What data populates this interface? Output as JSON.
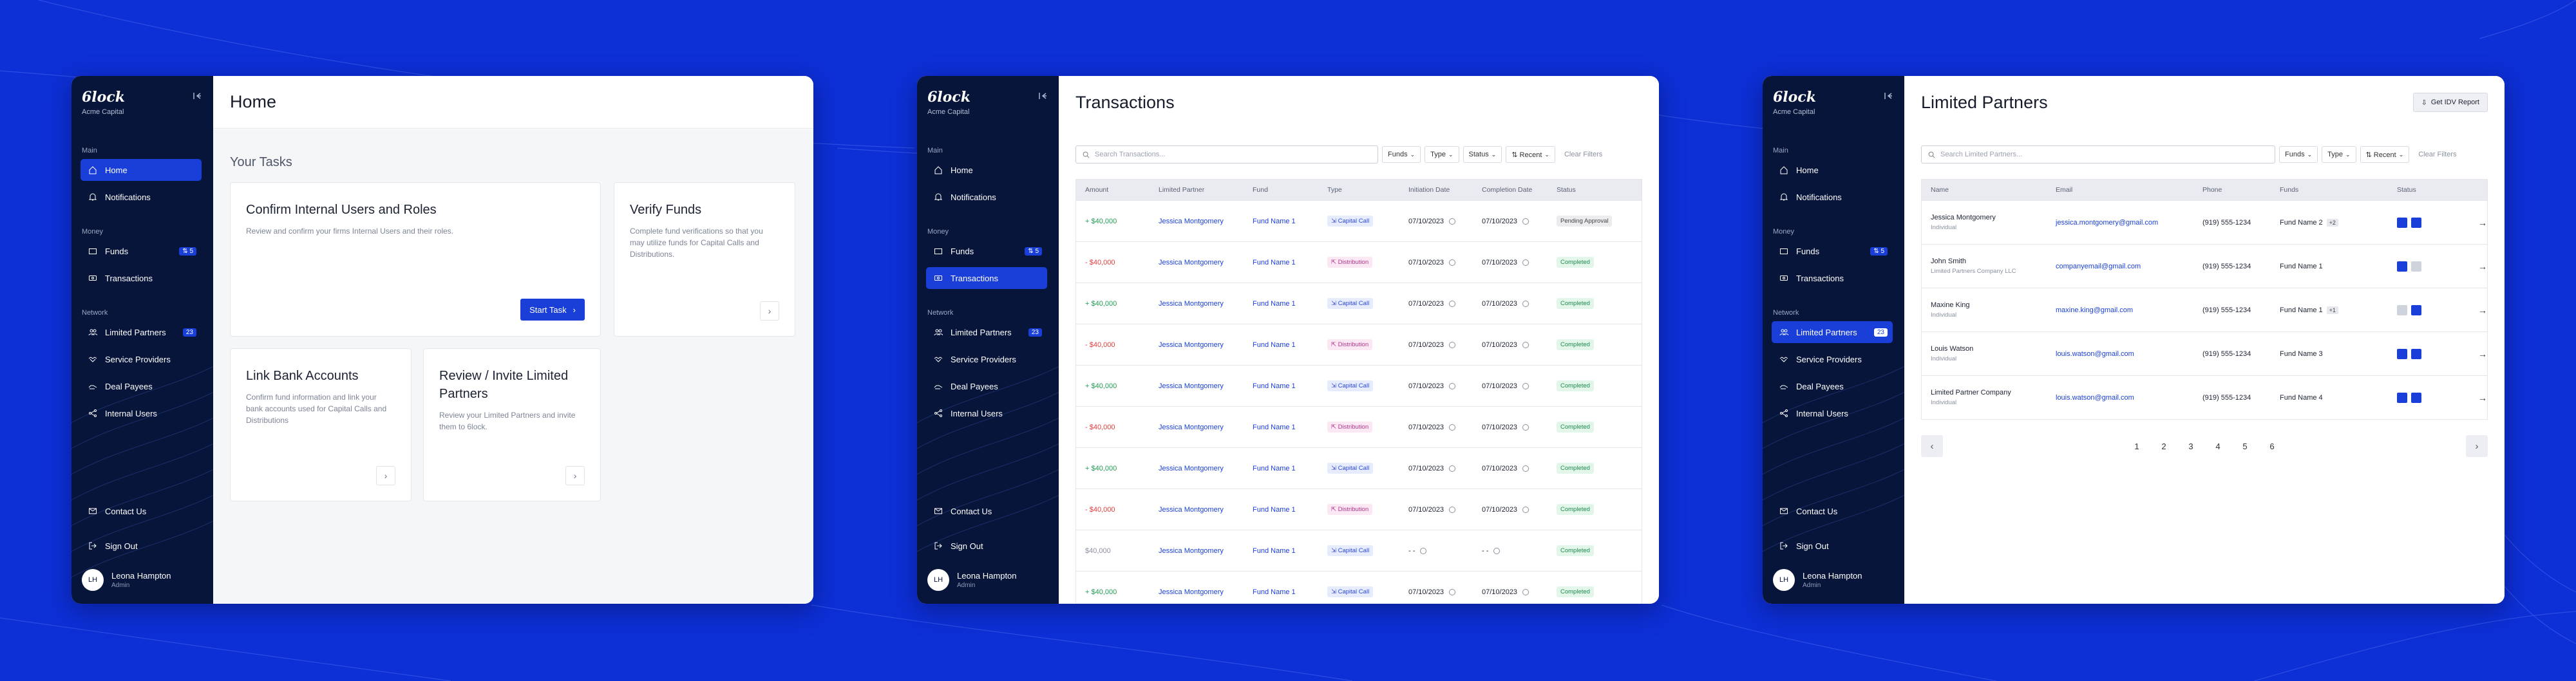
{
  "common": {
    "logo": "6lock",
    "org": "Acme Capital",
    "sections": {
      "main": "Main",
      "money": "Money",
      "network": "Network"
    },
    "nav": {
      "home": "Home",
      "notifications": "Notifications",
      "funds": "Funds",
      "funds_badge": "⇅ 5",
      "transactions": "Transactions",
      "limited_partners": "Limited Partners",
      "lp_badge": "23",
      "service_providers": "Service Providers",
      "deal_payees": "Deal Payees",
      "internal_users": "Internal Users",
      "contact_us": "Contact Us",
      "sign_out": "Sign Out"
    },
    "user": {
      "initials": "LH",
      "name": "Leona Hampton",
      "role": "Admin"
    }
  },
  "home": {
    "title": "Home",
    "section_title": "Your Tasks",
    "cards": [
      {
        "title": "Confirm Internal Users and Roles",
        "desc": "Review and confirm your firms Internal Users and their roles.",
        "button": "Start Task"
      },
      {
        "title": "Verify Funds",
        "desc": "Complete fund verifications so that you may utilize funds for Capital Calls and Distributions."
      },
      {
        "title": "Link Bank Accounts",
        "desc": "Confirm fund information and link your bank accounts used for Capital Calls and Distributions"
      },
      {
        "title": "Review / Invite Limited Partners",
        "desc": "Review your Limited Partners and invite them to 6lock."
      }
    ]
  },
  "transactions": {
    "title": "Transactions",
    "search_placeholder": "Search Transactions...",
    "filters": [
      "Funds",
      "Type",
      "Status",
      "⇅ Recent"
    ],
    "clear": "Clear Filters",
    "columns": [
      "Amount",
      "Limited Partner",
      "Fund",
      "Type",
      "Initiation Date",
      "Completion Date",
      "Status"
    ],
    "rows": [
      {
        "amount": "+ $40,000",
        "sign": "pos",
        "lp": "Jessica Montgomery",
        "fund": "Fund Name 1",
        "type": "⇲ Capital Call",
        "tclass": "cc",
        "init": "07/10/2023",
        "comp": "07/10/2023",
        "status": "Pending Approval",
        "sclass": "pa"
      },
      {
        "amount": "- $40,000",
        "sign": "neg",
        "lp": "Jessica Montgomery",
        "fund": "Fund Name 1",
        "type": "⇱ Distribution",
        "tclass": "ds",
        "init": "07/10/2023",
        "comp": "07/10/2023",
        "status": "Completed",
        "sclass": "ok"
      },
      {
        "amount": "+ $40,000",
        "sign": "pos",
        "lp": "Jessica Montgomery",
        "fund": "Fund Name 1",
        "type": "⇲ Capital Call",
        "tclass": "cc",
        "init": "07/10/2023",
        "comp": "07/10/2023",
        "status": "Completed",
        "sclass": "ok"
      },
      {
        "amount": "- $40,000",
        "sign": "neg",
        "lp": "Jessica Montgomery",
        "fund": "Fund Name 1",
        "type": "⇱ Distribution",
        "tclass": "ds",
        "init": "07/10/2023",
        "comp": "07/10/2023",
        "status": "Completed",
        "sclass": "ok"
      },
      {
        "amount": "+ $40,000",
        "sign": "pos",
        "lp": "Jessica Montgomery",
        "fund": "Fund Name 1",
        "type": "⇲ Capital Call",
        "tclass": "cc",
        "init": "07/10/2023",
        "comp": "07/10/2023",
        "status": "Completed",
        "sclass": "ok"
      },
      {
        "amount": "- $40,000",
        "sign": "neg",
        "lp": "Jessica Montgomery",
        "fund": "Fund Name 1",
        "type": "⇱ Distribution",
        "tclass": "ds",
        "init": "07/10/2023",
        "comp": "07/10/2023",
        "status": "Completed",
        "sclass": "ok"
      },
      {
        "amount": "+ $40,000",
        "sign": "pos",
        "lp": "Jessica Montgomery",
        "fund": "Fund Name 1",
        "type": "⇲ Capital Call",
        "tclass": "cc",
        "init": "07/10/2023",
        "comp": "07/10/2023",
        "status": "Completed",
        "sclass": "ok"
      },
      {
        "amount": "- $40,000",
        "sign": "neg",
        "lp": "Jessica Montgomery",
        "fund": "Fund Name 1",
        "type": "⇱ Distribution",
        "tclass": "ds",
        "init": "07/10/2023",
        "comp": "07/10/2023",
        "status": "Completed",
        "sclass": "ok"
      },
      {
        "amount": "$40,000",
        "sign": "neu",
        "lp": "Jessica Montgomery",
        "fund": "Fund Name 1",
        "type": "⇲ Capital Call",
        "tclass": "cc",
        "init": "- -",
        "comp": "- -",
        "status": "Completed",
        "sclass": "ok"
      },
      {
        "amount": "+ $40,000",
        "sign": "pos",
        "lp": "Jessica Montgomery",
        "fund": "Fund Name 1",
        "type": "⇲ Capital Call",
        "tclass": "cc",
        "init": "07/10/2023",
        "comp": "07/10/2023",
        "status": "Completed",
        "sclass": "ok"
      }
    ]
  },
  "limited_partners": {
    "title": "Limited Partners",
    "report_button": "Get IDV Report",
    "search_placeholder": "Search Limited Partners...",
    "filters": [
      "Funds",
      "Type",
      "⇅ Recent"
    ],
    "clear": "Clear Filters",
    "columns": [
      "Name",
      "Email",
      "Phone",
      "Funds",
      "Status"
    ],
    "rows": [
      {
        "name": "Jessica Montgomery",
        "sub": "Individual",
        "email": "jessica.montgomery@gmail.com",
        "phone": "(919) 555-1234",
        "fund": "Fund Name 2",
        "extra": "+2",
        "s1": "b",
        "s2": "b"
      },
      {
        "name": "John Smith",
        "sub": "Limited Partners Company LLC",
        "email": "companyemail@gmail.com",
        "phone": "(919) 555-1234",
        "fund": "Fund Name 1",
        "extra": "",
        "s1": "b",
        "s2": "g"
      },
      {
        "name": "Maxine King",
        "sub": "Individual",
        "email": "maxine.king@gmail.com",
        "phone": "(919) 555-1234",
        "fund": "Fund Name 1",
        "extra": "+1",
        "s1": "g",
        "s2": "b"
      },
      {
        "name": "Louis Watson",
        "sub": "Individual",
        "email": "louis.watson@gmail.com",
        "phone": "(919) 555-1234",
        "fund": "Fund Name 3",
        "extra": "",
        "s1": "b",
        "s2": "b"
      },
      {
        "name": "Limited Partner Company",
        "sub": "Individual",
        "email": "louis.watson@gmail.com",
        "phone": "(919) 555-1234",
        "fund": "Fund Name 4",
        "extra": "",
        "s1": "b",
        "s2": "b"
      }
    ],
    "pages": [
      "1",
      "2",
      "3",
      "4",
      "5",
      "6"
    ]
  },
  "colors": {
    "background": "#0d2fd6",
    "sidebar": "#07153a",
    "accent": "#1a3fd8",
    "positive": "#1f9d55",
    "negative": "#e03b3b"
  }
}
